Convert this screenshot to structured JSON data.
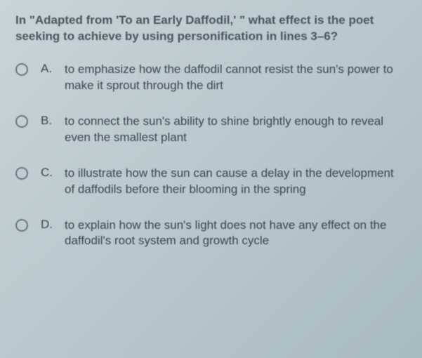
{
  "question": "In \"Adapted from 'To an Early Daffodil,' \" what effect is the poet seeking to achieve by using personification in lines 3–6?",
  "options": [
    {
      "letter": "A.",
      "text": "to emphasize how the daffodil cannot resist the sun's power to make it sprout through the dirt"
    },
    {
      "letter": "B.",
      "text": "to connect the sun's ability to shine brightly enough to reveal even the smallest plant"
    },
    {
      "letter": "C.",
      "text": "to illustrate how the sun can cause a delay in the development of daffodils before their blooming in the spring"
    },
    {
      "letter": "D.",
      "text": "to explain how the sun's light does not have any effect on the daffodil's root system and growth cycle"
    }
  ],
  "styling": {
    "background_gradient_start": "#c8d4d8",
    "background_gradient_end": "#a8bac2",
    "text_color": "#3a4550",
    "question_color": "#4a5560",
    "radio_border_color": "#6a7580",
    "font_size": 17,
    "line_height": 1.35
  }
}
